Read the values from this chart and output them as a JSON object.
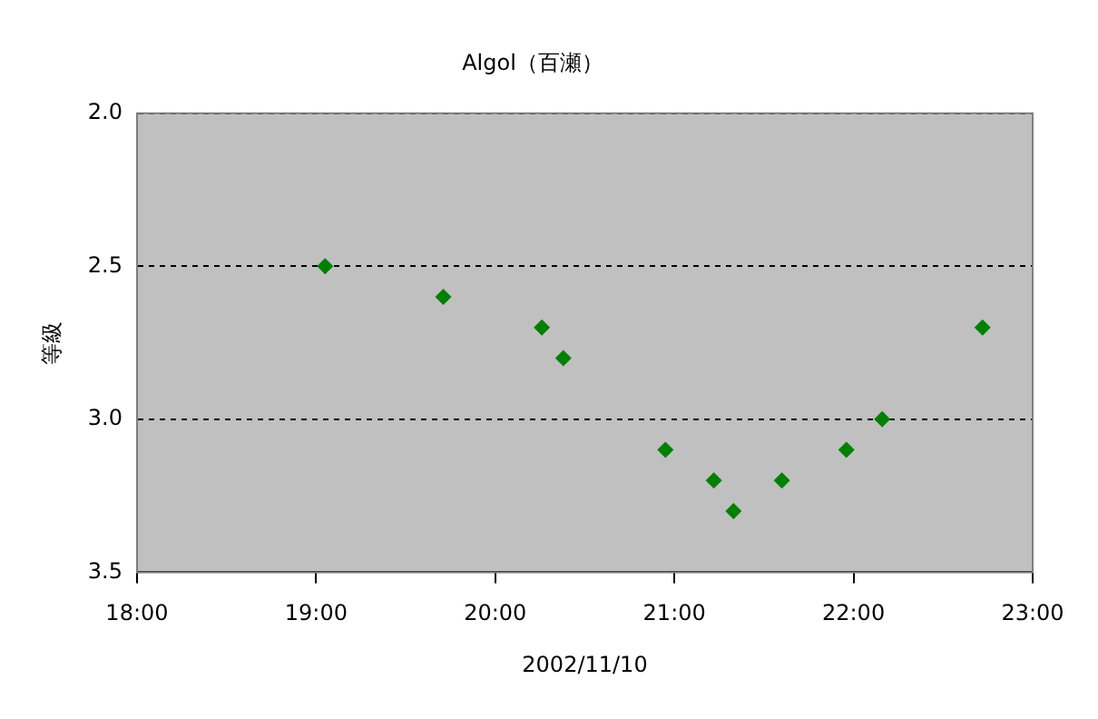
{
  "chart_data": {
    "type": "scatter",
    "title": "Algol（百瀬）",
    "xlabel": "2002/11/10",
    "ylabel": "等級",
    "x": [
      19.05,
      19.71,
      20.26,
      20.38,
      20.95,
      21.22,
      21.33,
      21.6,
      21.96,
      22.16,
      22.72
    ],
    "series": [
      {
        "color": "#008000",
        "values": [
          2.5,
          2.6,
          2.7,
          2.8,
          3.1,
          3.2,
          3.3,
          3.2,
          3.1,
          3.0,
          2.7
        ]
      }
    ],
    "xlim": [
      18,
      23
    ],
    "xticks": [
      {
        "value": 18,
        "label": "18:00"
      },
      {
        "value": 19,
        "label": "19:00"
      },
      {
        "value": 20,
        "label": "20:00"
      },
      {
        "value": 21,
        "label": "21:00"
      },
      {
        "value": 22,
        "label": "22:00"
      },
      {
        "value": 23,
        "label": "23:00"
      }
    ],
    "ylim": [
      3.5,
      2.0
    ],
    "yticks": [
      {
        "value": 2,
        "label": "2.0"
      },
      {
        "value": 2.5,
        "label": "2.5"
      },
      {
        "value": 3,
        "label": "3.0"
      },
      {
        "value": 3.5,
        "label": "3.5"
      }
    ],
    "grid": "y",
    "legend": false,
    "marker": "diamond"
  }
}
